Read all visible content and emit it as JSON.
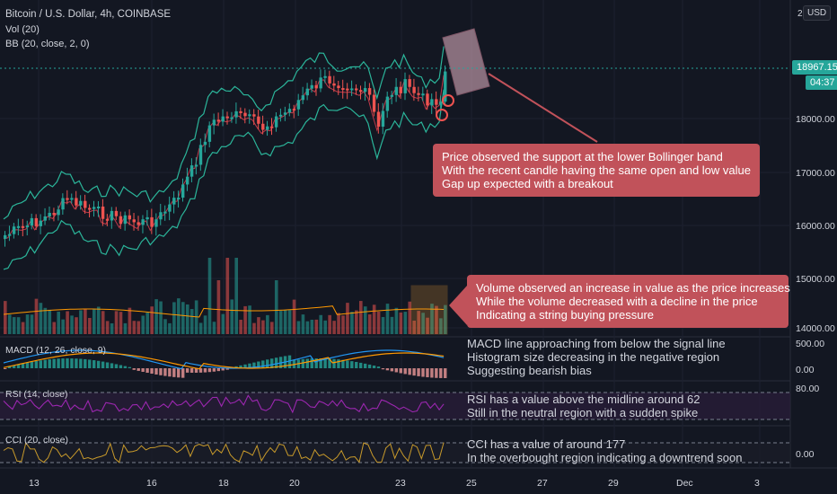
{
  "header": {
    "title": "Bitcoin / U.S. Dollar, 4h, COINBASE",
    "vol": "Vol (20)",
    "bb": "BB (20, close, 2, 0)",
    "currency": "USD",
    "top_tick_partial": "2"
  },
  "price_axis": {
    "ticks": [
      "18000.00",
      "17000.00",
      "16000.00",
      "15000.00",
      "14000.00"
    ],
    "last_price": "18967.15",
    "countdown": "04:37"
  },
  "panes": {
    "macd": {
      "title": "MACD (12, 26, close, 9)",
      "ticks": [
        "500.00",
        "0.00"
      ]
    },
    "rsi": {
      "title": "RSI (14, close)",
      "ticks": [
        "80.00"
      ]
    },
    "cci": {
      "title": "CCI (20, close)",
      "ticks": [
        "0.00"
      ]
    }
  },
  "time_axis": [
    "13",
    "16",
    "18",
    "20",
    "23",
    "25",
    "27",
    "29",
    "Dec",
    "3"
  ],
  "callouts": {
    "price": {
      "line1": "Price observed the support at the lower Bollinger band",
      "line2": "With the recent candle having the same open and low value",
      "line3": "Gap up expected with a breakout"
    },
    "volume": {
      "line1": "Volume observed an increase in value as the price increases",
      "line2": "While the volume decreased with a decline in the price",
      "line3": "Indicating a string buying pressure"
    }
  },
  "notes": {
    "macd": {
      "line1": "MACD line approaching from below the signal line",
      "line2": "Histogram size decreasing in the negative region",
      "line3": "Suggesting bearish bias"
    },
    "rsi": {
      "line1": "RSI has a value above the midline around 62",
      "line2": "Still in the neutral region with a sudden spike"
    },
    "cci": {
      "line1": "CCI has a value of around 177",
      "line2": "In the overbought region indicating a downtrend soon"
    }
  },
  "colors": {
    "up": "#26a69a",
    "down": "#ef5350",
    "bb_band": "#2bb59a",
    "bb_basis": "#c0394a",
    "macd_line": "#2196f3",
    "signal_line": "#ff9800",
    "rsi_line": "#9c27b0",
    "cci_line": "#c89a2b",
    "callout": "#c1525a"
  }
}
